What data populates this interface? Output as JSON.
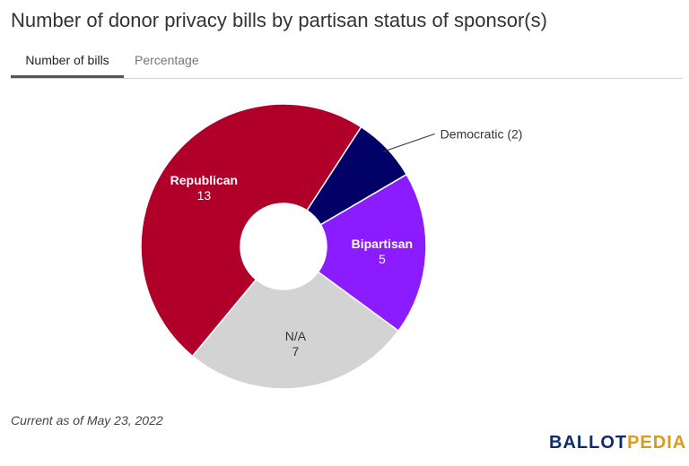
{
  "title": "Number of donor privacy bills by partisan status of sponsor(s)",
  "tabs": [
    {
      "label": "Number of bills",
      "active": true
    },
    {
      "label": "Percentage",
      "active": false
    }
  ],
  "chart_data": {
    "type": "pie",
    "variant": "donut",
    "categories": [
      "Democratic",
      "Bipartisan",
      "N/A",
      "Republican"
    ],
    "values": [
      2,
      5,
      7,
      13
    ],
    "colors": [
      "#000066",
      "#8a1cff",
      "#d3d3d3",
      "#b0002a"
    ],
    "labels": [
      {
        "name": "Democratic (2)",
        "value": ""
      },
      {
        "name": "Bipartisan",
        "value": "5"
      },
      {
        "name": "N/A",
        "value": "7"
      },
      {
        "name": "Republican",
        "value": "13"
      }
    ]
  },
  "footnote": "Current as of May 23, 2022",
  "logo": {
    "part1": "BALLOT",
    "part2": "PEDIA"
  }
}
